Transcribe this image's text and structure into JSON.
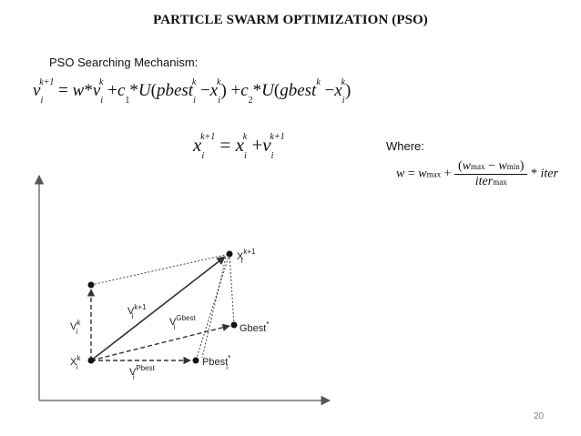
{
  "slide": {
    "title": "PARTICLE SWARM OPTIMIZATION (PSO)",
    "subtitle": "PSO Searching Mechanism:",
    "where_label": "Where:",
    "page_number": "20"
  },
  "equations": {
    "velocity_update": "v_i^{k+1} = w*v_i^k + c_1*U(pbest_i^k − x_i^k) + c_2*U(gbest^k − x_i^k)",
    "position_update": "x_i^{k+1} = x_i^k + v_i^{k+1}",
    "inertia_weight": "w = w_max + ((w_max − w_min) / iter_max) * iter"
  },
  "diagram": {
    "labels": {
      "x_k": "X",
      "x_k_sup": "k",
      "x_k_sub": "i",
      "x_k1": "X",
      "x_k1_sup": "k+1",
      "x_k1_sub": "i",
      "v_k": "V",
      "v_k_sup": "k",
      "v_k_sub": "i",
      "v_k1": "V",
      "v_k1_sup": "k+1",
      "v_k1_sub": "i",
      "v_gbest": "V",
      "v_gbest_sup": "Gbest",
      "v_gbest_sub": "i",
      "v_pbest": "V",
      "v_pbest_sup": "Pbest",
      "v_pbest_sub": "i",
      "gbest": "Gbest",
      "gbest_sup": "*",
      "pbest": "Pbest",
      "pbest_sup": "*",
      "pbest_sub": "i"
    }
  }
}
